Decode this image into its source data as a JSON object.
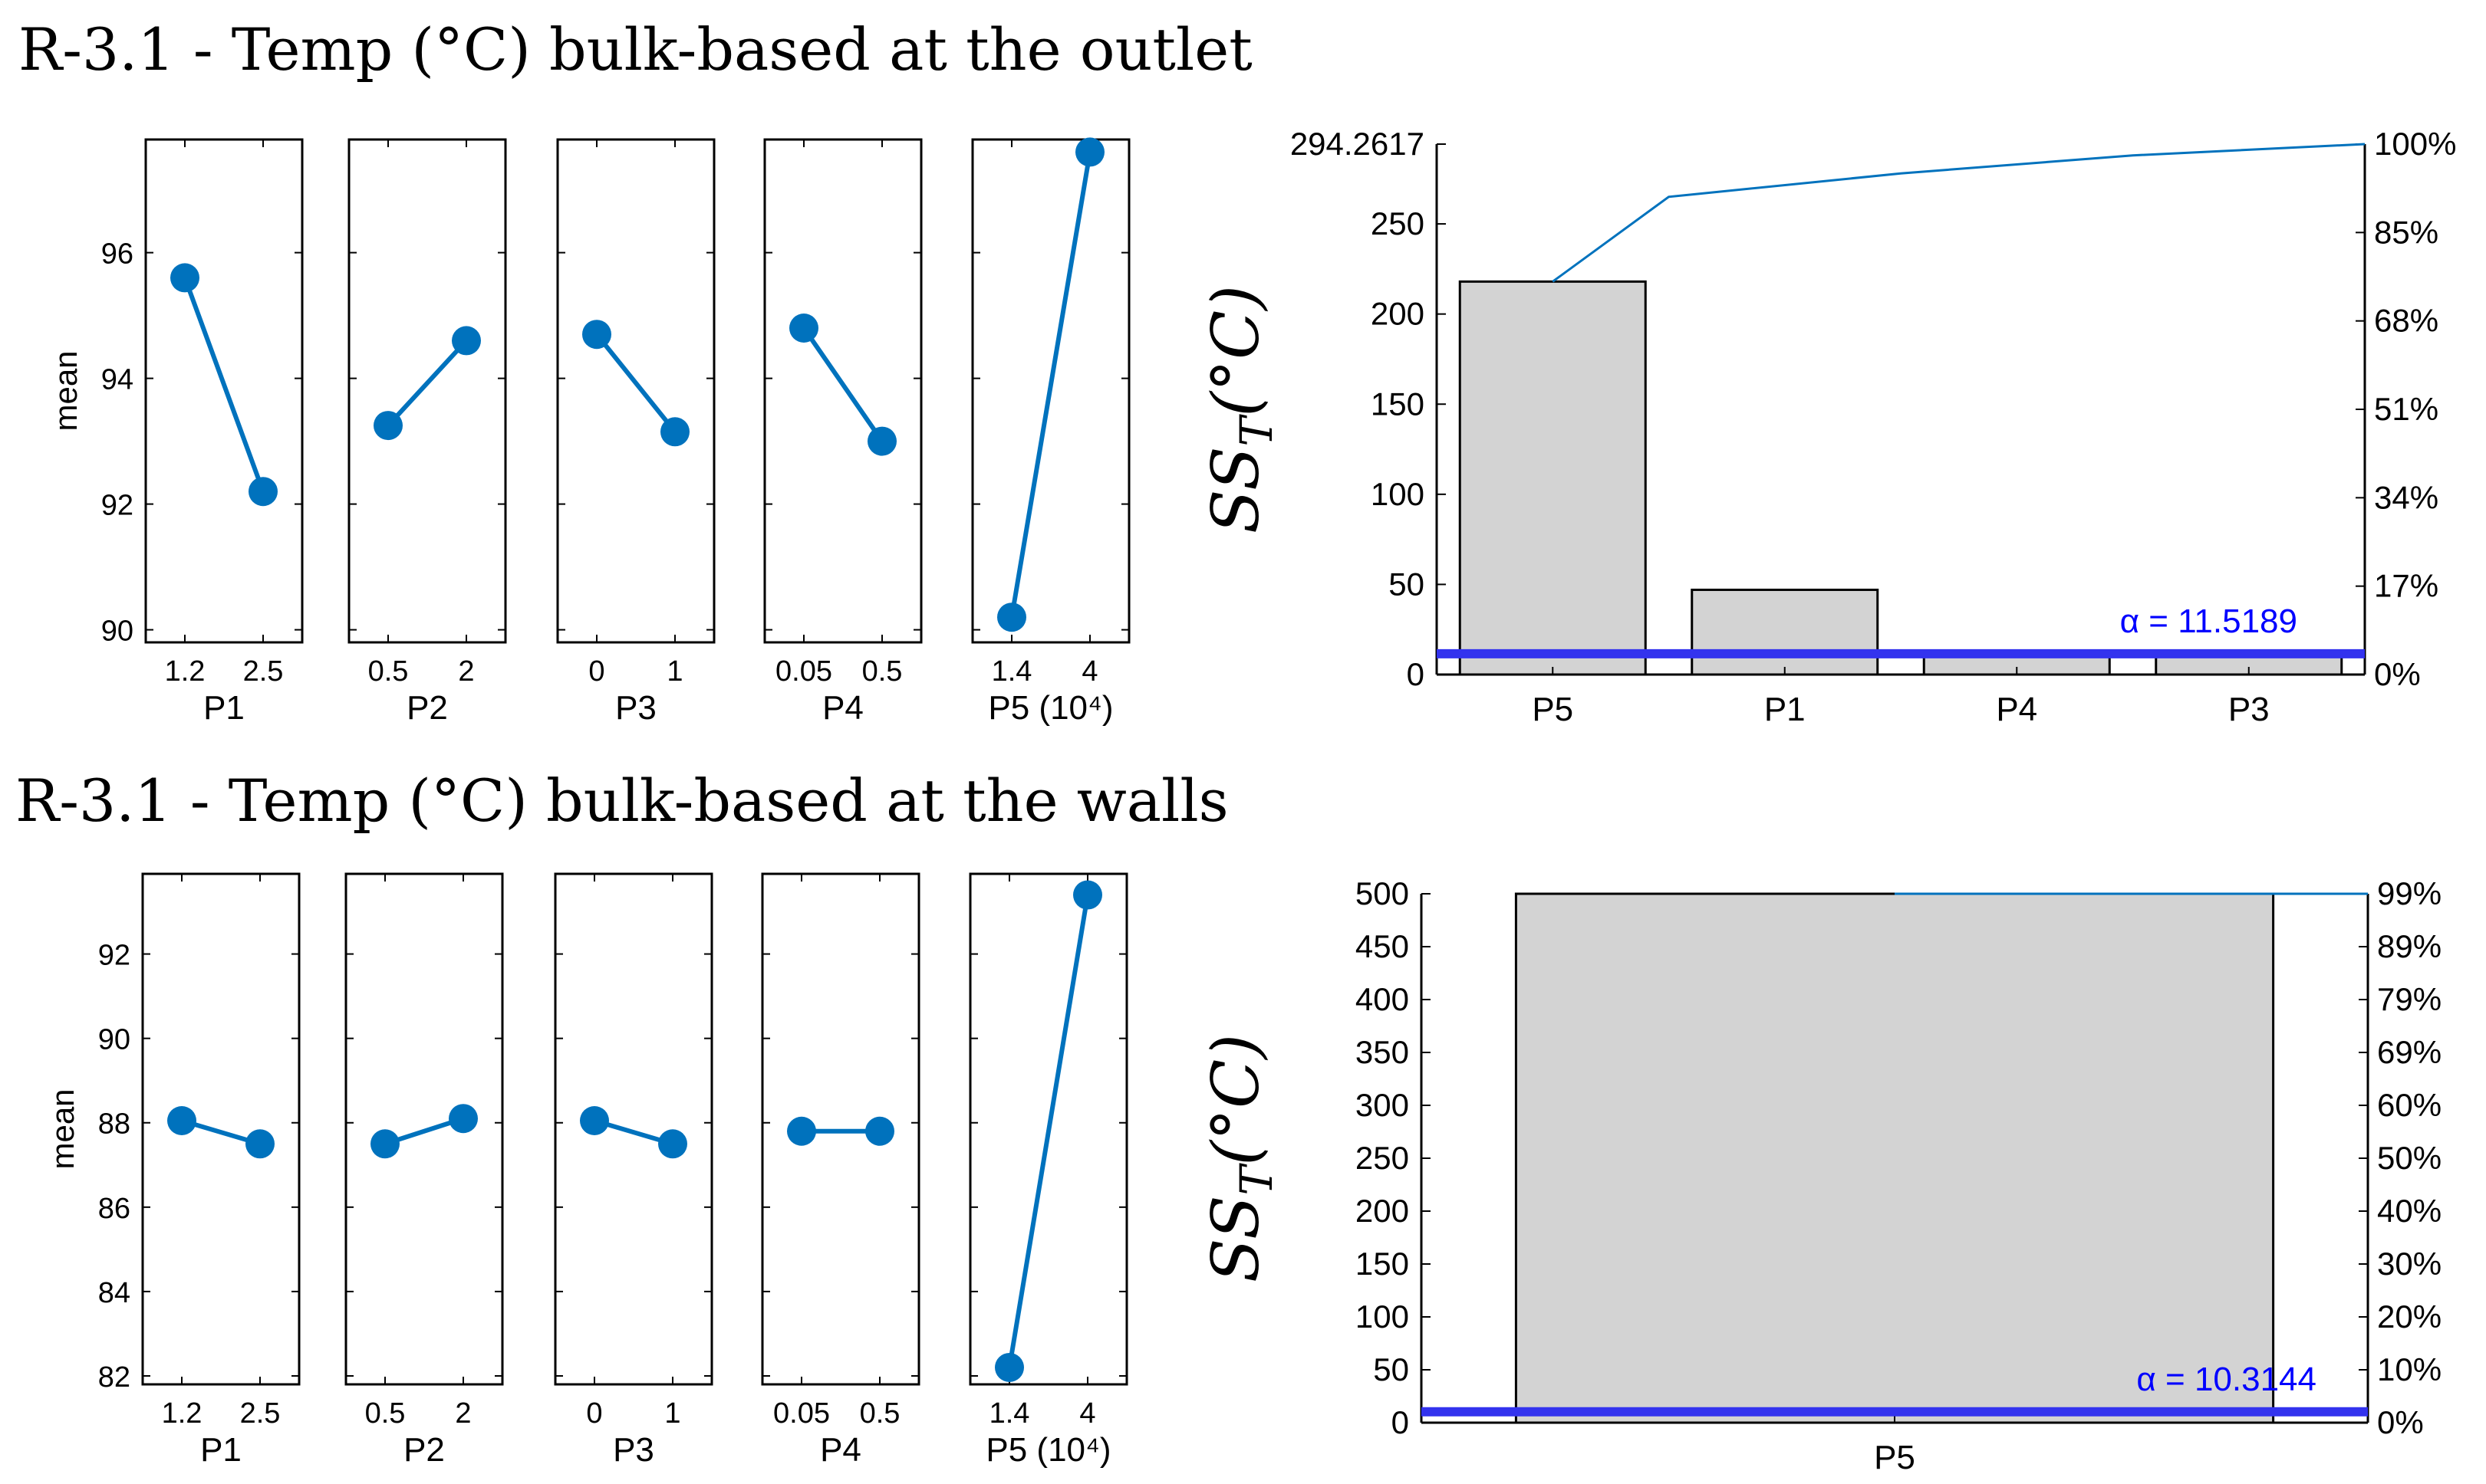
{
  "sections": [
    {
      "title": "R-3.1 - Temp (°C) bulk-based at the outlet"
    },
    {
      "title": "R-3.1 - Temp (°C) bulk-based at the walls"
    }
  ],
  "colors": {
    "line": "#0072BD",
    "bar": "#D3D3D3",
    "alpha": "#3333EE",
    "alpha_text": "#0000FF",
    "axis": "#000000"
  },
  "chart_data": [
    {
      "type": "line",
      "name": "main-effects-outlet",
      "ylabel": "mean",
      "ylim": [
        89.8,
        97.8
      ],
      "yticks": [
        90,
        92,
        94,
        96
      ],
      "panels": [
        {
          "xlabel": "P1",
          "x": [
            "1.2",
            "2.5"
          ],
          "y": [
            95.6,
            92.2
          ]
        },
        {
          "xlabel": "P2",
          "x": [
            "0.5",
            "2"
          ],
          "y": [
            93.25,
            94.6
          ]
        },
        {
          "xlabel": "P3",
          "x": [
            "0",
            "1"
          ],
          "y": [
            94.7,
            93.15
          ]
        },
        {
          "xlabel": "P4",
          "x": [
            "0.05",
            "0.5"
          ],
          "y": [
            94.8,
            93.0
          ]
        },
        {
          "xlabel": "P5 (10⁴)",
          "x": [
            "1.4",
            "4"
          ],
          "y": [
            90.2,
            97.6
          ]
        }
      ]
    },
    {
      "type": "bar",
      "name": "pareto-outlet",
      "ylabel": "SS_T(°C)",
      "ylabel_main": "SS",
      "ylabel_sub": "T",
      "ylabel_rest": "(°C)",
      "ylim": [
        0,
        294.2617
      ],
      "yticks": [
        0,
        50,
        100,
        150,
        200,
        250
      ],
      "ytick_labels": [
        "0",
        "50",
        "100",
        "150",
        "200",
        "250"
      ],
      "ymax_label": "294.2617",
      "right_ticks": [
        "0%",
        "17%",
        "34%",
        "51%",
        "68%",
        "85%",
        "100%"
      ],
      "categories": [
        "P5",
        "P1",
        "P4",
        "P3"
      ],
      "values": [
        218,
        47,
        13,
        10
      ],
      "cumulative": [
        218,
        265,
        278,
        288,
        294.2617
      ],
      "alpha": 11.5189,
      "alpha_label": "α = 11.5189"
    },
    {
      "type": "line",
      "name": "main-effects-walls",
      "ylabel": "mean",
      "ylim": [
        81.8,
        93.9
      ],
      "yticks": [
        82,
        84,
        86,
        88,
        90,
        92
      ],
      "panels": [
        {
          "xlabel": "P1",
          "x": [
            "1.2",
            "2.5"
          ],
          "y": [
            88.05,
            87.5
          ]
        },
        {
          "xlabel": "P2",
          "x": [
            "0.5",
            "2"
          ],
          "y": [
            87.5,
            88.1
          ]
        },
        {
          "xlabel": "P3",
          "x": [
            "0",
            "1"
          ],
          "y": [
            88.05,
            87.5
          ]
        },
        {
          "xlabel": "P4",
          "x": [
            "0.05",
            "0.5"
          ],
          "y": [
            87.8,
            87.8
          ]
        },
        {
          "xlabel": "P5 (10⁴)",
          "x": [
            "1.4",
            "4"
          ],
          "y": [
            82.2,
            93.4
          ]
        }
      ]
    },
    {
      "type": "bar",
      "name": "pareto-walls",
      "ylabel": "SS_T(°C)",
      "ylabel_main": "SS",
      "ylabel_sub": "T",
      "ylabel_rest": "(°C)",
      "ylim": [
        0,
        500
      ],
      "yticks": [
        0,
        50,
        100,
        150,
        200,
        250,
        300,
        350,
        400,
        450,
        500
      ],
      "ytick_labels": [
        "0",
        "50",
        "100",
        "150",
        "200",
        "250",
        "300",
        "350",
        "400",
        "450",
        "500"
      ],
      "right_ticks": [
        "0%",
        "10%",
        "20%",
        "30%",
        "40%",
        "50%",
        "60%",
        "69%",
        "79%",
        "89%",
        "99%"
      ],
      "categories": [
        "P5"
      ],
      "values": [
        500
      ],
      "cumulative": [
        500
      ],
      "alpha": 10.3144,
      "alpha_label": "α = 10.3144"
    }
  ]
}
